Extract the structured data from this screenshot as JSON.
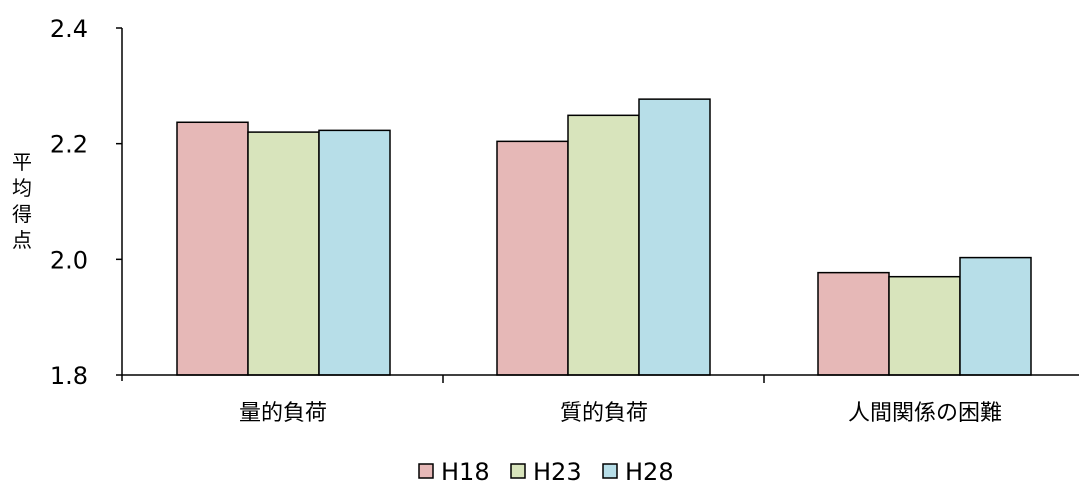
{
  "chart_data": {
    "type": "bar",
    "title": "",
    "xlabel": "",
    "ylabel": "平均得点",
    "ylim": [
      1.8,
      2.4
    ],
    "yticks": [
      "1.8",
      "2.0",
      "2.2",
      "2.4"
    ],
    "categories": [
      "量的負荷",
      "質的負荷",
      "人間関係の困難"
    ],
    "series": [
      {
        "name": "H18",
        "color": "#E6B8B7",
        "values": [
          2.237,
          2.204,
          1.977
        ]
      },
      {
        "name": "H23",
        "color": "#D8E4BC",
        "values": [
          2.22,
          2.249,
          1.97
        ]
      },
      {
        "name": "H28",
        "color": "#B7DEE8",
        "values": [
          2.223,
          2.277,
          2.003
        ]
      }
    ],
    "grid": false,
    "legend_position": "bottom"
  }
}
